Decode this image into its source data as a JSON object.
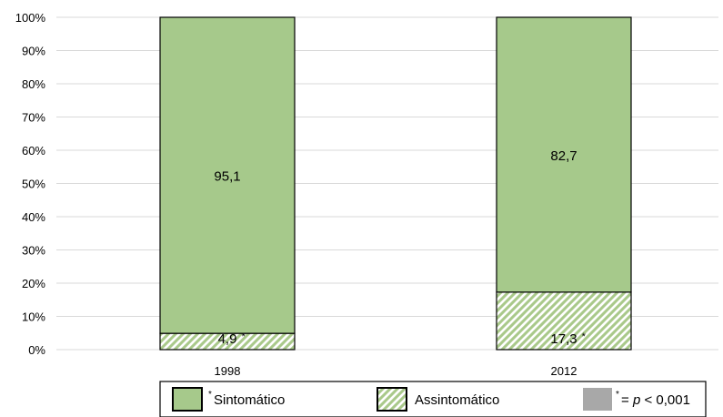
{
  "chart_data": {
    "type": "bar",
    "stacked": true,
    "categories": [
      "1998",
      "2012"
    ],
    "series": [
      {
        "name": "Assintomático",
        "values": [
          4.9,
          17.3
        ],
        "labels": [
          "4,9",
          "17,3"
        ],
        "marker": "*",
        "color": "#a9c98a",
        "pattern": "hatched"
      },
      {
        "name": "Sintomático",
        "values": [
          95.1,
          82.7
        ],
        "labels": [
          "95,1",
          "82,7"
        ],
        "color": "#a6c98b",
        "pattern": "solid"
      }
    ],
    "ylim": [
      0,
      100
    ],
    "yticks": [
      "0%",
      "10%",
      "20%",
      "30%",
      "40%",
      "50%",
      "60%",
      "70%",
      "80%",
      "90%",
      "100%"
    ],
    "grid": true,
    "legend_position": "bottom",
    "legend": [
      {
        "marker": "*",
        "label": "Sintomático",
        "swatch": "solid",
        "color": "#a6c98b"
      },
      {
        "marker": "",
        "label": "Assintomático",
        "swatch": "hatched",
        "color": "#a9c98a"
      },
      {
        "marker": "*",
        "prefix": "= ",
        "italic": "p",
        "suffix": " < 0,001",
        "swatch": "gray",
        "color": "#a8a8a8"
      }
    ]
  }
}
